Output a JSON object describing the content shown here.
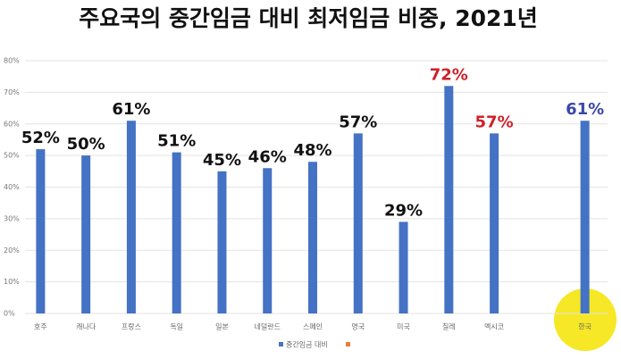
{
  "chart_data": {
    "type": "bar",
    "title": "주요국의 중간임금 대비 최저임금 비중, 2021년",
    "categories": [
      "호주",
      "캐나다",
      "프랑스",
      "독일",
      "일본",
      "네덜란드",
      "스페인",
      "영국",
      "미국",
      "칠레",
      "멕시코",
      null,
      "한국"
    ],
    "series": [
      {
        "name": "중간임금 대비",
        "color": "#4472c4",
        "values": [
          52,
          50,
          61,
          51,
          45,
          46,
          48,
          57,
          29,
          72,
          57,
          null,
          61
        ],
        "value_labels": [
          "52%",
          "50%",
          "61%",
          "51%",
          "45%",
          "46%",
          "48%",
          "57%",
          "29%",
          "72%",
          "57%",
          null,
          "61%"
        ],
        "label_colors": [
          "#111111",
          "#111111",
          "#111111",
          "#111111",
          "#111111",
          "#111111",
          "#111111",
          "#111111",
          "#111111",
          "#d0202a",
          "#d0202a",
          null,
          "#3a48a8"
        ]
      }
    ],
    "ylim": [
      0,
      80
    ],
    "yticks": [
      {
        "value": 0,
        "label": "0%"
      },
      {
        "value": 10,
        "label": "10%"
      },
      {
        "value": 20,
        "label": "20%"
      },
      {
        "value": 30,
        "label": "30%"
      },
      {
        "value": 40,
        "label": "40%"
      },
      {
        "value": 50,
        "label": "50%"
      },
      {
        "value": 60,
        "label": "60%"
      },
      {
        "value": 70,
        "label": "70%"
      },
      {
        "value": 80,
        "label": "80%"
      }
    ],
    "grid": true
  }
}
